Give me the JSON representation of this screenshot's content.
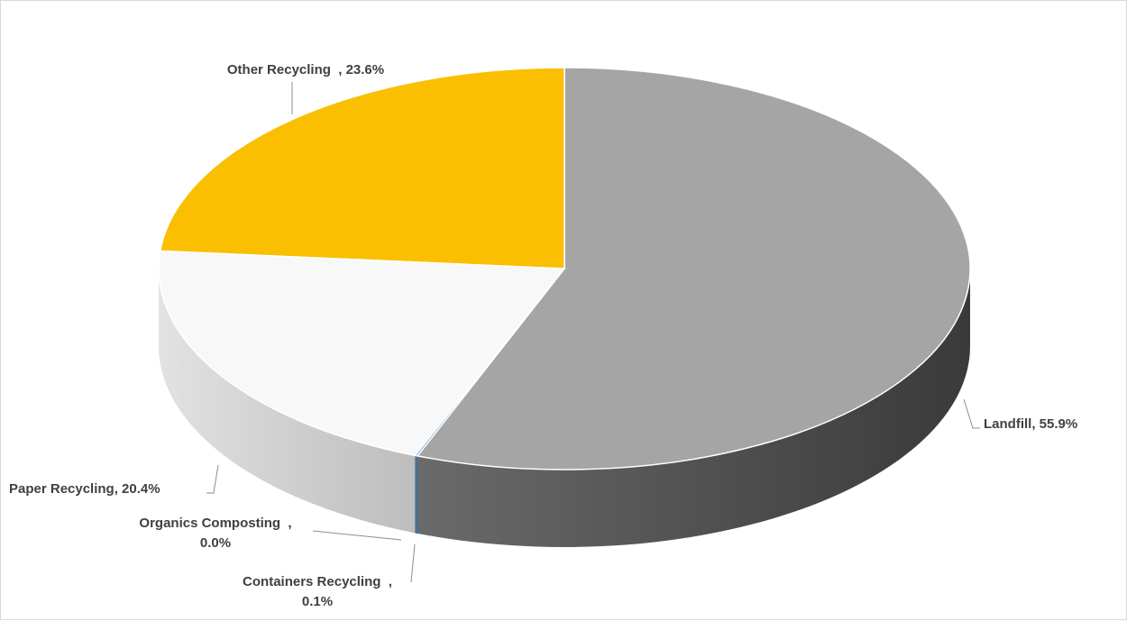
{
  "chart_data": {
    "type": "pie",
    "style": "3d",
    "title": "",
    "slices": [
      {
        "label": "Landfill",
        "value": 55.9,
        "value_text": "55.9%",
        "color": "#a5a5a5",
        "side_color": "#404040"
      },
      {
        "label": "Containers Recycling",
        "value": 0.1,
        "value_text": "0.1%",
        "color": "#5b9bd5",
        "side_color": "#41719c"
      },
      {
        "label": "Organics Composting",
        "value": 0.0,
        "value_text": "0.0%",
        "color": "#70ad47",
        "side_color": "#507e32"
      },
      {
        "label": "Paper Recycling",
        "value": 20.4,
        "value_text": "20.4%",
        "color": "#f8f8f8",
        "side_color": "#d0d0d0"
      },
      {
        "label": "Other Recycling",
        "value": 23.6,
        "value_text": "23.6%",
        "color": "#fabf00",
        "side_color": "#c49500"
      }
    ],
    "data_labels": [
      {
        "lines": [
          "Other Recycling  , 23.6%"
        ]
      },
      {
        "lines": [
          "Landfill, 55.9%"
        ]
      },
      {
        "lines": [
          "Paper Recycling, 20.4%"
        ]
      },
      {
        "lines": [
          "Organics Composting  ,",
          "0.0%"
        ]
      },
      {
        "lines": [
          "Containers Recycling  ,",
          "0.1%"
        ]
      }
    ],
    "legend": "none"
  }
}
